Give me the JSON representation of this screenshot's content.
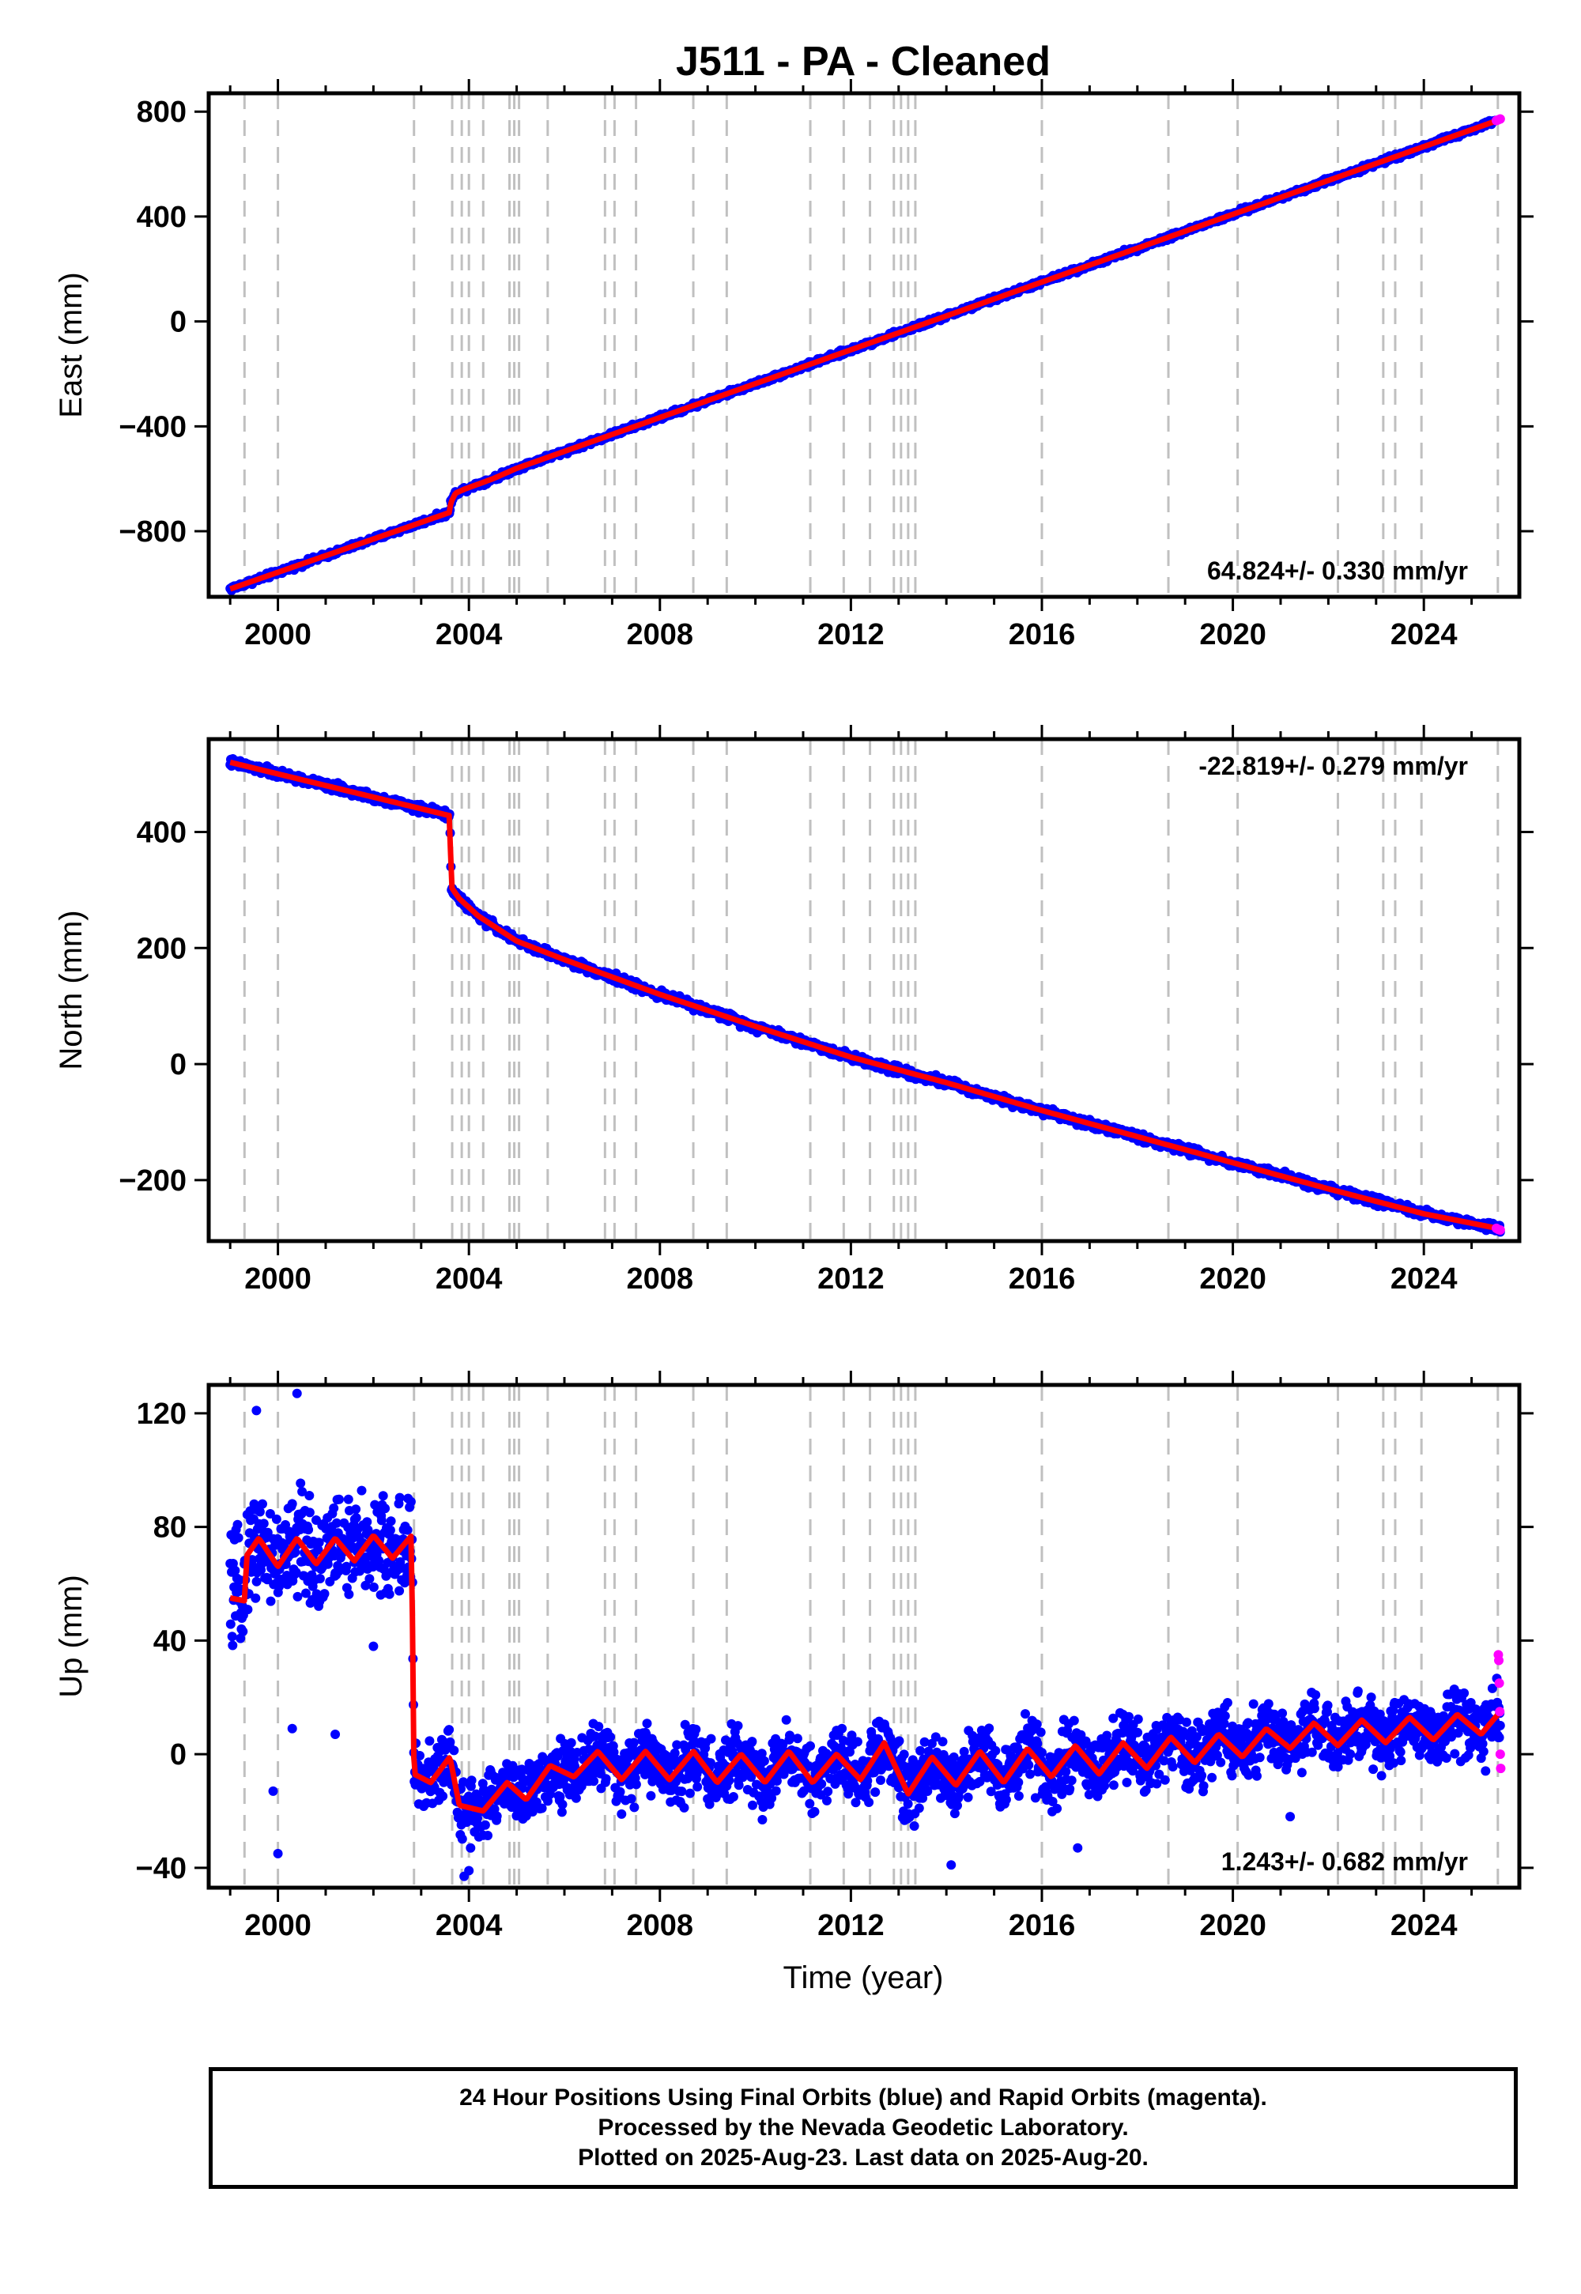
{
  "title": "J511  - PA - Cleaned",
  "xlabel": "Time (year)",
  "colors": {
    "final_orbits": "#0000ff",
    "rapid_orbits": "#ff00ff",
    "model": "#ff0000",
    "event_lines": "#c0c0c0",
    "frame": "#000000"
  },
  "event_lines_years": [
    1999.3,
    2000.0,
    2002.85,
    2003.65,
    2003.85,
    2004.0,
    2004.3,
    2004.85,
    2004.95,
    2005.05,
    2005.65,
    2006.85,
    2007.05,
    2007.5,
    2008.7,
    2009.4,
    2011.15,
    2011.85,
    2012.4,
    2012.9,
    2013.05,
    2013.2,
    2013.35,
    2016.0,
    2018.65,
    2020.1,
    2022.2,
    2023.15,
    2023.4,
    2023.95,
    2025.55
  ],
  "caption": {
    "line1": "24 Hour Positions Using Final Orbits (blue) and Rapid Orbits (magenta).",
    "line2": "Processed by the Nevada Geodetic Laboratory.",
    "line3": "Plotted on 2025-Aug-23. Last data on 2025-Aug-20."
  },
  "chart_data": [
    {
      "type": "scatter",
      "panel": "East",
      "ylabel": "East (mm)",
      "rate_text": "64.824+/- 0.330 mm/yr",
      "rate_placement": "bottom-right",
      "xlim": [
        1998.55,
        2026.0
      ],
      "ylim": [
        -1050,
        870
      ],
      "xticks": [
        2000,
        2004,
        2008,
        2012,
        2016,
        2020,
        2024
      ],
      "xtick_labels": [
        "2000",
        "2004",
        "2008",
        "2012",
        "2016",
        "2020",
        "2024"
      ],
      "yticks": [
        -800,
        -400,
        0,
        400,
        800
      ],
      "ytick_labels": [
        "−800",
        "−400",
        "0",
        "400",
        "800"
      ],
      "grid": false,
      "series": [
        {
          "role": "final_orbits",
          "x": [
            1999.0,
            2000.0,
            2001.0,
            2002.0,
            2002.8,
            2003.6,
            2003.72,
            2004.0,
            2005.0,
            2006.0,
            2007.0,
            2008.0,
            2009.0,
            2010.0,
            2011.0,
            2012.0,
            2013.0,
            2014.0,
            2015.0,
            2016.0,
            2017.0,
            2018.0,
            2019.0,
            2020.0,
            2021.0,
            2022.0,
            2023.0,
            2024.0,
            2025.0,
            2025.5
          ],
          "y": [
            -1020,
            -955,
            -890,
            -825,
            -778,
            -730,
            -655,
            -630,
            -560,
            -495,
            -430,
            -368,
            -305,
            -240,
            -175,
            -110,
            -45,
            20,
            85,
            150,
            215,
            280,
            345,
            410,
            475,
            540,
            605,
            668,
            735,
            768
          ]
        },
        {
          "role": "model",
          "x": [
            1999.0,
            2003.6,
            2003.62,
            2003.72,
            2003.9,
            2004.5,
            2005.0,
            2025.6
          ],
          "y": [
            -1020,
            -728,
            -690,
            -655,
            -640,
            -600,
            -560,
            770
          ]
        },
        {
          "role": "rapid_orbits",
          "x": [
            2025.52,
            2025.56,
            2025.6
          ],
          "y": [
            766,
            769,
            772
          ]
        }
      ]
    },
    {
      "type": "scatter",
      "panel": "North",
      "ylabel": "North (mm)",
      "rate_text": "-22.819+/- 0.279 mm/yr",
      "rate_placement": "top-right",
      "xlim": [
        1998.55,
        2026.0
      ],
      "ylim": [
        -305,
        560
      ],
      "xticks": [
        2000,
        2004,
        2008,
        2012,
        2016,
        2020,
        2024
      ],
      "xtick_labels": [
        "2000",
        "2004",
        "2008",
        "2012",
        "2016",
        "2020",
        "2024"
      ],
      "yticks": [
        -200,
        0,
        200,
        400
      ],
      "ytick_labels": [
        "−200",
        "0",
        "200",
        "400"
      ],
      "grid": false,
      "series": [
        {
          "role": "final_orbits",
          "x": [
            1999.0,
            1999.5,
            2000.0,
            2001.0,
            2002.0,
            2003.0,
            2003.6,
            2003.62,
            2003.75,
            2004.0,
            2004.5,
            2005.0,
            2006.0,
            2007.0,
            2008.0,
            2009.0,
            2010.0,
            2011.0,
            2011.6,
            2012.0,
            2012.8,
            2013.5,
            2014.0,
            2015.0,
            2016.0,
            2017.0,
            2018.0,
            2019.0,
            2020.0,
            2021.0,
            2022.0,
            2023.0,
            2024.0,
            2025.0,
            2025.6
          ],
          "y": [
            530,
            518,
            505,
            485,
            462,
            442,
            430,
            310,
            290,
            265,
            240,
            210,
            180,
            148,
            120,
            92,
            65,
            40,
            20,
            12,
            0,
            -20,
            -32,
            -55,
            -80,
            -103,
            -125,
            -148,
            -170,
            -193,
            -215,
            -238,
            -258,
            -272,
            -285
          ]
        },
        {
          "role": "model",
          "x": [
            1999.0,
            2003.6,
            2003.63,
            2003.8,
            2004.2,
            2005.0,
            2006.0,
            2008.0,
            2010.0,
            2012.0,
            2014.0,
            2016.0,
            2018.0,
            2020.0,
            2022.0,
            2024.0,
            2025.6
          ],
          "y": [
            520,
            428,
            305,
            285,
            255,
            212,
            180,
            120,
            65,
            12,
            -32,
            -80,
            -125,
            -170,
            -215,
            -258,
            -284
          ]
        },
        {
          "role": "rapid_orbits",
          "x": [
            2025.52,
            2025.56,
            2025.6
          ],
          "y": [
            -283,
            -285,
            -286
          ]
        }
      ]
    },
    {
      "type": "scatter",
      "panel": "Up",
      "ylabel": "Up (mm)",
      "rate_text": "1.243+/- 0.682 mm/yr",
      "rate_placement": "bottom-right",
      "xlim": [
        1998.55,
        2026.0
      ],
      "ylim": [
        -47,
        130
      ],
      "xticks": [
        2000,
        2004,
        2008,
        2012,
        2016,
        2020,
        2024
      ],
      "xtick_labels": [
        "2000",
        "2004",
        "2008",
        "2012",
        "2016",
        "2020",
        "2024"
      ],
      "yticks": [
        -40,
        0,
        40,
        80,
        120
      ],
      "ytick_labels": [
        "−40",
        "0",
        "40",
        "80",
        "120"
      ],
      "grid": false,
      "series": [
        {
          "role": "final_orbits",
          "note_values": "seasonal scatter about model",
          "x": [
            1999.0,
            1999.5,
            2000.0,
            2000.5,
            2001.0,
            2001.5,
            2002.0,
            2002.5,
            2002.8,
            2002.9,
            2003.5,
            2003.8,
            2004.5,
            2005.0,
            2006.0,
            2007.0,
            2008.0,
            2009.0,
            2010.0,
            2011.0,
            2012.0,
            2013.0,
            2014.0,
            2015.0,
            2016.0,
            2017.0,
            2018.0,
            2019.0,
            2020.0,
            2021.0,
            2022.0,
            2023.0,
            2024.0,
            2025.0,
            2025.6
          ],
          "y": [
            55,
            75,
            68,
            76,
            68,
            76,
            70,
            75,
            70,
            -8,
            -10,
            -18,
            -15,
            -12,
            -5,
            -7,
            -5,
            -6,
            -7,
            -6,
            -5,
            -10,
            -5,
            -3,
            -3,
            -2,
            -1,
            2,
            3,
            4,
            5,
            6,
            7,
            9,
            12
          ]
        },
        {
          "role": "model",
          "x": [
            1999.0,
            1999.3,
            1999.35,
            1999.6,
            2000.0,
            2000.4,
            2000.8,
            2001.2,
            2001.6,
            2002.0,
            2002.4,
            2002.8,
            2002.85,
            2003.2,
            2003.6,
            2003.8,
            2004.3,
            2004.8,
            2005.2,
            2005.7,
            2006.2,
            2006.7,
            2007.2,
            2007.7,
            2008.2,
            2008.7,
            2009.2,
            2009.7,
            2010.2,
            2010.7,
            2011.2,
            2011.7,
            2012.2,
            2012.7,
            2013.2,
            2013.7,
            2014.2,
            2014.7,
            2015.2,
            2015.7,
            2016.2,
            2016.7,
            2017.2,
            2017.7,
            2018.2,
            2018.7,
            2019.2,
            2019.7,
            2020.2,
            2020.7,
            2021.2,
            2021.7,
            2022.2,
            2022.7,
            2023.2,
            2023.7,
            2024.2,
            2024.7,
            2025.2,
            2025.6
          ],
          "y": [
            55,
            54,
            70,
            76,
            66,
            76,
            67,
            76,
            68,
            77,
            69,
            77,
            -7,
            -10,
            -1,
            -18,
            -20,
            -10,
            -16,
            -4,
            -8,
            1,
            -9,
            1,
            -9,
            1,
            -10,
            0,
            -10,
            1,
            -10,
            0,
            -9,
            4,
            -14,
            -1,
            -11,
            1,
            -10,
            2,
            -8,
            3,
            -7,
            4,
            -5,
            6,
            -3,
            7,
            -1,
            9,
            2,
            11,
            3,
            12,
            4,
            13,
            5,
            14,
            7,
            15
          ]
        },
        {
          "role": "rapid_orbits",
          "x": [
            2025.56,
            2025.57,
            2025.58,
            2025.59,
            2025.6,
            2025.61
          ],
          "y": [
            35,
            33,
            25,
            15,
            0,
            -5
          ]
        }
      ]
    }
  ]
}
